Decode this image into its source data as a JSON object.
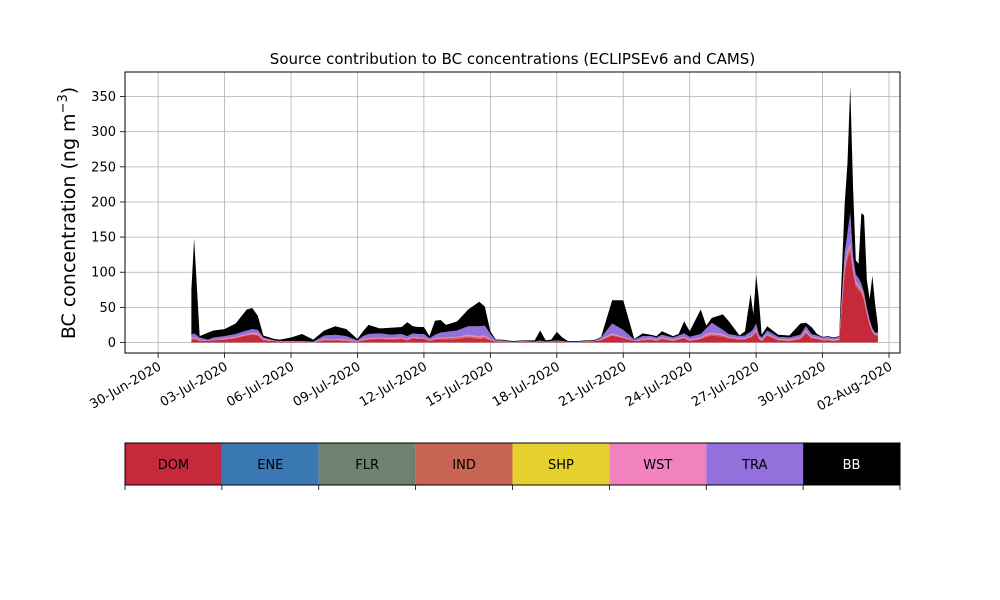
{
  "chart_data": {
    "type": "area",
    "stacked": true,
    "title": "Source contribution to BC concentrations (ECLIPSEv6 and CAMS)",
    "ylabel_main": "BC concentration (ng m",
    "ylabel_sup": "−3",
    "ylabel_close": ")",
    "xlabel": "",
    "grid": true,
    "x_domain": [
      "2020-06-29",
      "2020-08-02"
    ],
    "ylim": [
      -15,
      385
    ],
    "yticks": [
      0,
      50,
      100,
      150,
      200,
      250,
      300,
      350
    ],
    "xticks": [
      {
        "date": "2020-06-30",
        "label": "30-Jun-2020"
      },
      {
        "date": "2020-07-03",
        "label": "03-Jul-2020"
      },
      {
        "date": "2020-07-06",
        "label": "06-Jul-2020"
      },
      {
        "date": "2020-07-09",
        "label": "09-Jul-2020"
      },
      {
        "date": "2020-07-12",
        "label": "12-Jul-2020"
      },
      {
        "date": "2020-07-15",
        "label": "15-Jul-2020"
      },
      {
        "date": "2020-07-18",
        "label": "18-Jul-2020"
      },
      {
        "date": "2020-07-21",
        "label": "21-Jul-2020"
      },
      {
        "date": "2020-07-24",
        "label": "24-Jul-2020"
      },
      {
        "date": "2020-07-27",
        "label": "27-Jul-2020"
      },
      {
        "date": "2020-07-30",
        "label": "30-Jul-2020"
      },
      {
        "date": "2020-08-02",
        "label": "02-Aug-2020"
      }
    ],
    "x": [
      "2020-07-01 12:00",
      "2020-07-01 15:00",
      "2020-07-01 21:00",
      "2020-07-02 06:00",
      "2020-07-02 12:00",
      "2020-07-03 00:00",
      "2020-07-03 12:00",
      "2020-07-04 00:00",
      "2020-07-04 06:00",
      "2020-07-04 12:00",
      "2020-07-04 18:00",
      "2020-07-05 06:00",
      "2020-07-05 12:00",
      "2020-07-06 00:00",
      "2020-07-06 12:00",
      "2020-07-07 00:00",
      "2020-07-07 12:00",
      "2020-07-08 00:00",
      "2020-07-08 12:00",
      "2020-07-09 00:00",
      "2020-07-09 06:00",
      "2020-07-09 12:00",
      "2020-07-10 00:00",
      "2020-07-10 12:00",
      "2020-07-11 00:00",
      "2020-07-11 06:00",
      "2020-07-11 12:00",
      "2020-07-11 18:00",
      "2020-07-12 00:00",
      "2020-07-12 06:00",
      "2020-07-12 12:00",
      "2020-07-12 18:00",
      "2020-07-13 00:00",
      "2020-07-13 12:00",
      "2020-07-14 00:00",
      "2020-07-14 12:00",
      "2020-07-14 18:00",
      "2020-07-15 00:00",
      "2020-07-15 06:00",
      "2020-07-15 12:00",
      "2020-07-16 00:00",
      "2020-07-16 12:00",
      "2020-07-17 00:00",
      "2020-07-17 06:00",
      "2020-07-17 12:00",
      "2020-07-17 18:00",
      "2020-07-18 00:00",
      "2020-07-18 06:00",
      "2020-07-18 12:00",
      "2020-07-18 18:00",
      "2020-07-19 00:00",
      "2020-07-19 06:00",
      "2020-07-19 12:00",
      "2020-07-19 18:00",
      "2020-07-20 00:00",
      "2020-07-20 12:00",
      "2020-07-21 00:00",
      "2020-07-21 12:00",
      "2020-07-21 21:00",
      "2020-07-22 06:00",
      "2020-07-22 12:00",
      "2020-07-22 18:00",
      "2020-07-23 06:00",
      "2020-07-23 12:00",
      "2020-07-23 18:00",
      "2020-07-24 00:00",
      "2020-07-24 12:00",
      "2020-07-24 18:00",
      "2020-07-25 00:00",
      "2020-07-25 12:00",
      "2020-07-25 18:00",
      "2020-07-26 06:00",
      "2020-07-26 12:00",
      "2020-07-26 15:00",
      "2020-07-26 18:00",
      "2020-07-26 21:00",
      "2020-07-27 00:00",
      "2020-07-27 03:00",
      "2020-07-27 06:00",
      "2020-07-27 12:00",
      "2020-07-28 00:00",
      "2020-07-28 12:00",
      "2020-07-29 00:00",
      "2020-07-29 06:00",
      "2020-07-29 12:00",
      "2020-07-29 18:00",
      "2020-07-30 00:00",
      "2020-07-30 06:00",
      "2020-07-30 12:00",
      "2020-07-30 18:00",
      "2020-07-31 00:00",
      "2020-07-31 03:00",
      "2020-07-31 06:00",
      "2020-07-31 09:00",
      "2020-07-31 12:00",
      "2020-07-31 15:00",
      "2020-07-31 18:00",
      "2020-07-31 21:00",
      "2020-08-01 00:00",
      "2020-08-01 03:00",
      "2020-08-01 06:00",
      "2020-08-01 09:00",
      "2020-08-01 12:00"
    ],
    "series": [
      {
        "name": "DOM",
        "color": "#c62a3a",
        "values": [
          4,
          5,
          2,
          2,
          3,
          4,
          6,
          10,
          11,
          10,
          3,
          2,
          1,
          1,
          1,
          0,
          3,
          3,
          2,
          1,
          3,
          4,
          5,
          4,
          5,
          3,
          6,
          5,
          5,
          2,
          4,
          5,
          4,
          5,
          7,
          5,
          6,
          3,
          1,
          1,
          0,
          1,
          0,
          2,
          0,
          1,
          2,
          1,
          0,
          0,
          0,
          1,
          1,
          2,
          3,
          10,
          6,
          2,
          3,
          4,
          2,
          5,
          2,
          4,
          6,
          2,
          5,
          8,
          10,
          8,
          6,
          4,
          4,
          6,
          7,
          10,
          15,
          5,
          2,
          10,
          3,
          2,
          5,
          13,
          6,
          5,
          3,
          3,
          2,
          3,
          100,
          120,
          130,
          100,
          80,
          75,
          70,
          60,
          40,
          25,
          15,
          10,
          10
        ]
      },
      {
        "name": "ENE",
        "color": "#3a78b4",
        "values": [
          0,
          0,
          0,
          0,
          0,
          0,
          0,
          0,
          0,
          0,
          0,
          0,
          0,
          0,
          0,
          0,
          0,
          0,
          0,
          0,
          0,
          0,
          0,
          0,
          0,
          0,
          0,
          0,
          0,
          0,
          0,
          0,
          0,
          0,
          0,
          0,
          0,
          0,
          0,
          0,
          0,
          0,
          0,
          0,
          0,
          0,
          0,
          0,
          0,
          0,
          0,
          0,
          0,
          0,
          0,
          0,
          0,
          0,
          0,
          0,
          0,
          0,
          0,
          0,
          0,
          0,
          0,
          0,
          0,
          0,
          0,
          0,
          0,
          0,
          0,
          0,
          0,
          0,
          0,
          0,
          0,
          0,
          0,
          0,
          0,
          0,
          0,
          0,
          0,
          0,
          0,
          0,
          0,
          0,
          0,
          0,
          0,
          0,
          0,
          0,
          0,
          0,
          0
        ]
      },
      {
        "name": "FLR",
        "color": "#6f816f",
        "values": [
          0,
          0,
          0,
          0,
          0,
          0,
          0,
          0,
          0,
          0,
          0,
          0,
          0,
          0,
          0,
          0,
          0,
          0,
          0,
          0,
          0,
          0,
          0,
          0,
          0,
          0,
          0,
          0,
          0,
          0,
          0,
          0,
          0,
          0,
          0,
          0,
          0,
          0,
          0,
          0,
          0,
          0,
          0,
          0,
          0,
          0,
          0,
          0,
          0,
          0,
          0,
          0,
          0,
          0,
          0,
          0,
          0,
          0,
          0,
          0,
          0,
          0,
          0,
          0,
          0,
          0,
          0,
          0,
          0,
          0,
          0,
          0,
          0,
          0,
          0,
          0,
          0,
          0,
          0,
          0,
          0,
          0,
          0,
          0,
          0,
          0,
          0,
          0,
          0,
          0,
          0,
          0,
          0,
          0,
          0,
          0,
          0,
          0,
          0,
          0,
          0,
          0,
          0
        ]
      },
      {
        "name": "IND",
        "color": "#c86454",
        "values": [
          1,
          1,
          1,
          0,
          1,
          1,
          1,
          1,
          1,
          1,
          1,
          0,
          0,
          0,
          0,
          0,
          1,
          1,
          1,
          0,
          1,
          1,
          1,
          1,
          1,
          1,
          1,
          1,
          1,
          1,
          1,
          1,
          2,
          2,
          2,
          2,
          2,
          1,
          0,
          0,
          0,
          0,
          0,
          0,
          0,
          0,
          0,
          0,
          0,
          0,
          0,
          0,
          0,
          0,
          1,
          1,
          1,
          0,
          1,
          1,
          1,
          1,
          1,
          1,
          1,
          1,
          1,
          2,
          2,
          2,
          1,
          1,
          1,
          1,
          1,
          2,
          2,
          1,
          1,
          1,
          1,
          1,
          1,
          2,
          1,
          1,
          1,
          1,
          1,
          1,
          5,
          6,
          6,
          5,
          4,
          4,
          4,
          3,
          2,
          2,
          1,
          1,
          1
        ]
      },
      {
        "name": "SHP",
        "color": "#e6d02e",
        "values": [
          0,
          0,
          0,
          0,
          0,
          0,
          0,
          0,
          0,
          0,
          0,
          0,
          0,
          0,
          0,
          0,
          0,
          0,
          0,
          0,
          0,
          0,
          0,
          0,
          0,
          0,
          0,
          0,
          0,
          0,
          0,
          0,
          0,
          0,
          0,
          0,
          0,
          0,
          0,
          0,
          0,
          0,
          0,
          0,
          0,
          0,
          0,
          0,
          0,
          0,
          0,
          0,
          0,
          0,
          0,
          0,
          0,
          0,
          0,
          0,
          0,
          0,
          0,
          0,
          0,
          0,
          0,
          0,
          0,
          0,
          0,
          0,
          0,
          0,
          0,
          0,
          0,
          0,
          0,
          0,
          0,
          0,
          0,
          0,
          0,
          0,
          0,
          0,
          0,
          0,
          0,
          0,
          0,
          0,
          0,
          0,
          0,
          0,
          0,
          0,
          0,
          0,
          0
        ]
      },
      {
        "name": "WST",
        "color": "#f282be",
        "values": [
          1,
          1,
          1,
          0,
          0,
          1,
          1,
          1,
          2,
          2,
          1,
          0,
          0,
          0,
          0,
          0,
          1,
          1,
          1,
          0,
          1,
          1,
          1,
          1,
          1,
          1,
          1,
          1,
          1,
          0,
          1,
          1,
          1,
          1,
          2,
          2,
          2,
          1,
          0,
          0,
          0,
          0,
          0,
          0,
          0,
          0,
          0,
          0,
          0,
          0,
          0,
          0,
          0,
          0,
          1,
          2,
          1,
          0,
          1,
          1,
          1,
          1,
          1,
          1,
          1,
          1,
          1,
          2,
          2,
          2,
          1,
          1,
          1,
          1,
          1,
          1,
          2,
          1,
          1,
          1,
          1,
          1,
          1,
          2,
          1,
          1,
          1,
          1,
          1,
          1,
          3,
          4,
          4,
          3,
          3,
          3,
          2,
          2,
          2,
          1,
          1,
          1,
          1
        ]
      },
      {
        "name": "TRA",
        "color": "#9370db",
        "values": [
          5,
          6,
          3,
          2,
          3,
          3,
          4,
          5,
          5,
          5,
          2,
          1,
          1,
          1,
          1,
          1,
          5,
          6,
          5,
          2,
          4,
          6,
          6,
          5,
          5,
          4,
          5,
          5,
          5,
          3,
          5,
          7,
          8,
          9,
          12,
          14,
          14,
          7,
          2,
          2,
          1,
          1,
          1,
          1,
          1,
          1,
          1,
          1,
          1,
          1,
          1,
          1,
          1,
          1,
          2,
          14,
          10,
          2,
          4,
          3,
          3,
          4,
          3,
          4,
          5,
          4,
          5,
          8,
          14,
          6,
          4,
          3,
          4,
          5,
          6,
          6,
          8,
          4,
          3,
          5,
          3,
          3,
          4,
          6,
          4,
          3,
          2,
          3,
          2,
          3,
          20,
          25,
          45,
          15,
          10,
          10,
          8,
          6,
          5,
          4,
          3,
          2,
          2
        ]
      },
      {
        "name": "BB",
        "color": "#000000",
        "values": [
          64,
          135,
          2,
          10,
          10,
          10,
          15,
          30,
          30,
          20,
          3,
          2,
          2,
          5,
          10,
          3,
          7,
          12,
          10,
          2,
          7,
          13,
          7,
          10,
          10,
          20,
          10,
          10,
          10,
          3,
          20,
          18,
          10,
          13,
          24,
          35,
          27,
          4,
          1,
          1,
          1,
          1,
          2,
          14,
          2,
          2,
          12,
          5,
          1,
          1,
          1,
          1,
          1,
          1,
          1,
          33,
          42,
          1,
          4,
          2,
          2,
          5,
          2,
          2,
          17,
          8,
          35,
          4,
          7,
          22,
          19,
          1,
          6,
          30,
          54,
          21,
          70,
          50,
          4,
          6,
          3,
          3,
          16,
          5,
          10,
          2,
          1,
          1,
          1,
          1,
          70,
          100,
          180,
          100,
          20,
          20,
          100,
          110,
          40,
          30,
          75,
          40,
          10
        ]
      }
    ]
  },
  "legend": {
    "items": [
      {
        "label": "DOM",
        "color": "#c62a3a",
        "text_color": "#000000"
      },
      {
        "label": "ENE",
        "color": "#3a78b4",
        "text_color": "#000000"
      },
      {
        "label": "FLR",
        "color": "#6f816f",
        "text_color": "#000000"
      },
      {
        "label": "IND",
        "color": "#c86454",
        "text_color": "#000000"
      },
      {
        "label": "SHP",
        "color": "#e6d02e",
        "text_color": "#000000"
      },
      {
        "label": "WST",
        "color": "#f282be",
        "text_color": "#000000"
      },
      {
        "label": "TRA",
        "color": "#9370db",
        "text_color": "#000000"
      },
      {
        "label": "BB",
        "color": "#000000",
        "text_color": "#ffffff"
      }
    ]
  }
}
